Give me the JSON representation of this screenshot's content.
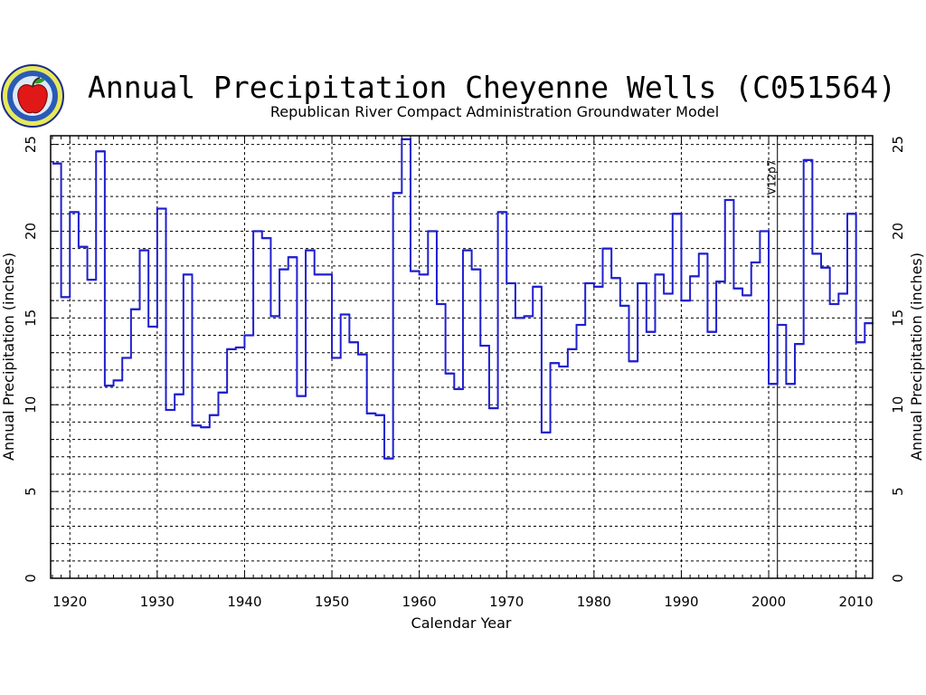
{
  "chart_data": {
    "type": "line",
    "step": true,
    "title": "Annual Precipitation Cheyenne Wells (C051564)",
    "subtitle": "Republican River Compact Administration Groundwater Model",
    "xlabel": "Calendar Year",
    "ylabel": "Annual Precipitation (inches)",
    "ylabel_right": "Annual Precipitation (inches)",
    "xlim": [
      1917.8,
      2011.9
    ],
    "ylim": [
      0,
      25.5
    ],
    "x_ticks": [
      "1920",
      "1930",
      "1940",
      "1950",
      "1960",
      "1970",
      "1980",
      "1990",
      "2000",
      "2010"
    ],
    "y_ticks": [
      "0",
      "5",
      "10",
      "15",
      "20",
      "25"
    ],
    "grid": true,
    "annotation": {
      "text": "V12p7",
      "x": 2001
    },
    "series_color": "#1f1fd0",
    "series": [
      {
        "x": [
          1918,
          1919,
          1920,
          1921,
          1922,
          1923,
          1924,
          1925,
          1926,
          1927,
          1928,
          1929,
          1930,
          1931,
          1932,
          1933,
          1934,
          1935,
          1936,
          1937,
          1938,
          1939,
          1940,
          1941,
          1942,
          1943,
          1944,
          1945,
          1946,
          1947,
          1948,
          1949,
          1950,
          1951,
          1952,
          1953,
          1954,
          1955,
          1956,
          1957,
          1958,
          1959,
          1960,
          1961,
          1962,
          1963,
          1964,
          1965,
          1966,
          1967,
          1968,
          1969,
          1970,
          1971,
          1972,
          1973,
          1974,
          1975,
          1976,
          1977,
          1978,
          1979,
          1980,
          1981,
          1982,
          1983,
          1984,
          1985,
          1986,
          1987,
          1988,
          1989,
          1990,
          1991,
          1992,
          1993,
          1994,
          1995,
          1996,
          1997,
          1998,
          1999,
          2000,
          2001,
          2002,
          2003,
          2004,
          2005,
          2006,
          2007,
          2008,
          2009,
          2010,
          2011
        ],
        "values": [
          23.9,
          16.2,
          21.1,
          19.1,
          17.2,
          24.6,
          11.1,
          11.4,
          12.7,
          15.5,
          18.9,
          14.5,
          21.3,
          9.7,
          10.6,
          17.5,
          8.8,
          8.7,
          9.4,
          10.7,
          13.2,
          13.3,
          14.0,
          20.0,
          19.6,
          15.1,
          17.8,
          18.5,
          10.5,
          18.9,
          17.5,
          17.5,
          12.7,
          15.2,
          13.6,
          12.9,
          9.5,
          9.4,
          6.9,
          22.2,
          25.3,
          17.7,
          17.5,
          20.0,
          15.8,
          11.8,
          10.9,
          18.9,
          17.8,
          13.4,
          9.8,
          21.1,
          17.0,
          15.0,
          15.1,
          16.8,
          8.4,
          12.4,
          12.2,
          13.2,
          14.6,
          17.0,
          16.8,
          19.0,
          17.3,
          15.7,
          12.5,
          17.0,
          14.2,
          17.5,
          16.4,
          21.0,
          16.0,
          17.4,
          18.7,
          14.2,
          17.1,
          21.8,
          16.7,
          16.3,
          18.2,
          20.0,
          11.2,
          14.6,
          11.2,
          13.5,
          24.1,
          18.7,
          17.9,
          15.8,
          16.4,
          21.0,
          13.6,
          14.7
        ]
      }
    ]
  }
}
